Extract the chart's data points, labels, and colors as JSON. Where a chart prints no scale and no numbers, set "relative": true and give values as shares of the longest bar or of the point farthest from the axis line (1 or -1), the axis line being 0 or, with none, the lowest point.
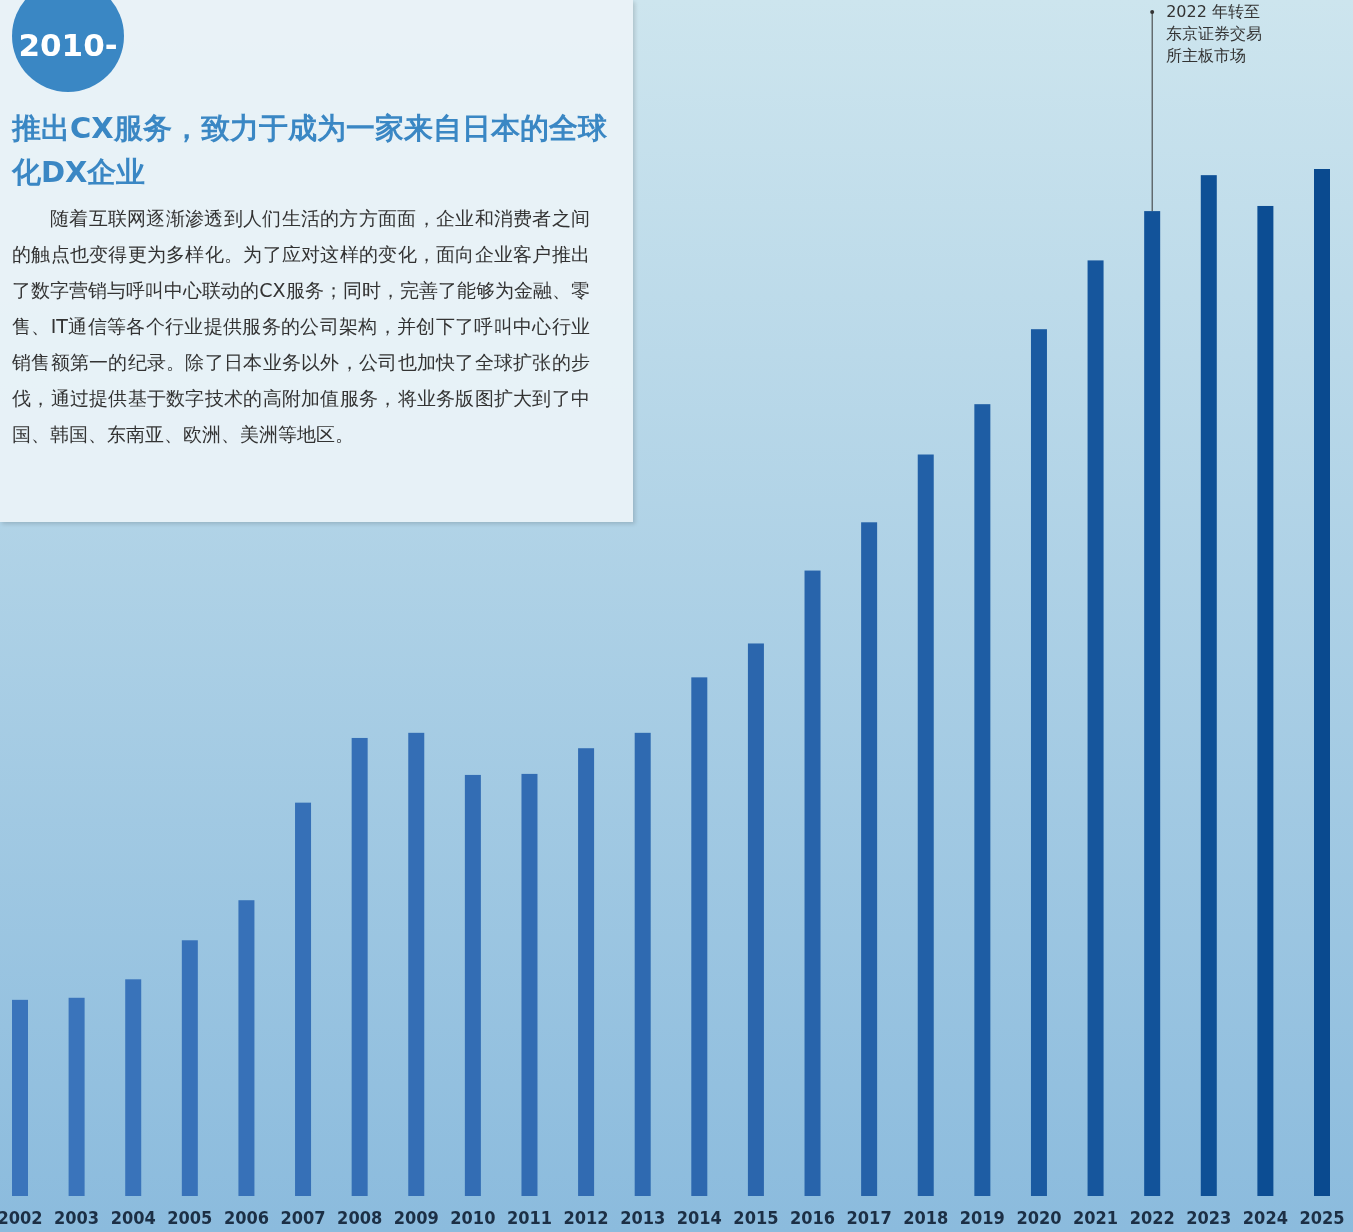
{
  "chart_data": {
    "type": "bar",
    "relative": true,
    "title": "推出CX服务，致力于成为一家来自日本的全球化DX企业",
    "subtitle": "2010-",
    "categories": [
      "2002",
      "2003",
      "2004",
      "2005",
      "2006",
      "2007",
      "2008",
      "2009",
      "2010",
      "2011",
      "2012",
      "2013",
      "2014",
      "2015",
      "2016",
      "2017",
      "2018",
      "2019",
      "2020",
      "2021",
      "2022",
      "2023",
      "2024",
      "2025"
    ],
    "values": [
      0.191,
      0.193,
      0.211,
      0.249,
      0.288,
      0.383,
      0.446,
      0.451,
      0.41,
      0.411,
      0.436,
      0.451,
      0.505,
      0.538,
      0.609,
      0.656,
      0.722,
      0.771,
      0.844,
      0.911,
      0.959,
      0.994,
      0.964,
      1
    ],
    "colors": [
      "#3a74bb",
      "#3a74bb",
      "#3973ba",
      "#3872b9",
      "#3771b8",
      "#3670b7",
      "#356fb6",
      "#346eb5",
      "#336db4",
      "#326cb3",
      "#316bb2",
      "#2f6ab1",
      "#2d68af",
      "#2b66ad",
      "#2864ab",
      "#2562a9",
      "#2260a7",
      "#1e5da4",
      "#1a5aa1",
      "#16569d",
      "#12539a",
      "#0e5096",
      "#0c4d93",
      "#0a4a8f"
    ],
    "annotations": [
      {
        "text": "2022 年转至东京证券交易所主板市场",
        "x": "2022",
        "y": 0.959
      },
      "随着互联网逐渐渗透到人们生活的方方面面，企业和消费者之间的触点也变得更为多样化。为了应对这样的变化，面向企业客户推出了数字营销与呼叫中心联动的CX服务；同时，完善了能够为金融、零售、IT通信等各个行业提供服务的公司架构，并创下了呼叫中心行业销售额第一的纪录。除了日本业务以外，公司也加快了全球扩张的步伐，通过提供基于数字技术的高附加值服务，将业务版图扩大到了中国、韩国、东南亚、欧洲、美洲等地区。"
    ]
  }
}
